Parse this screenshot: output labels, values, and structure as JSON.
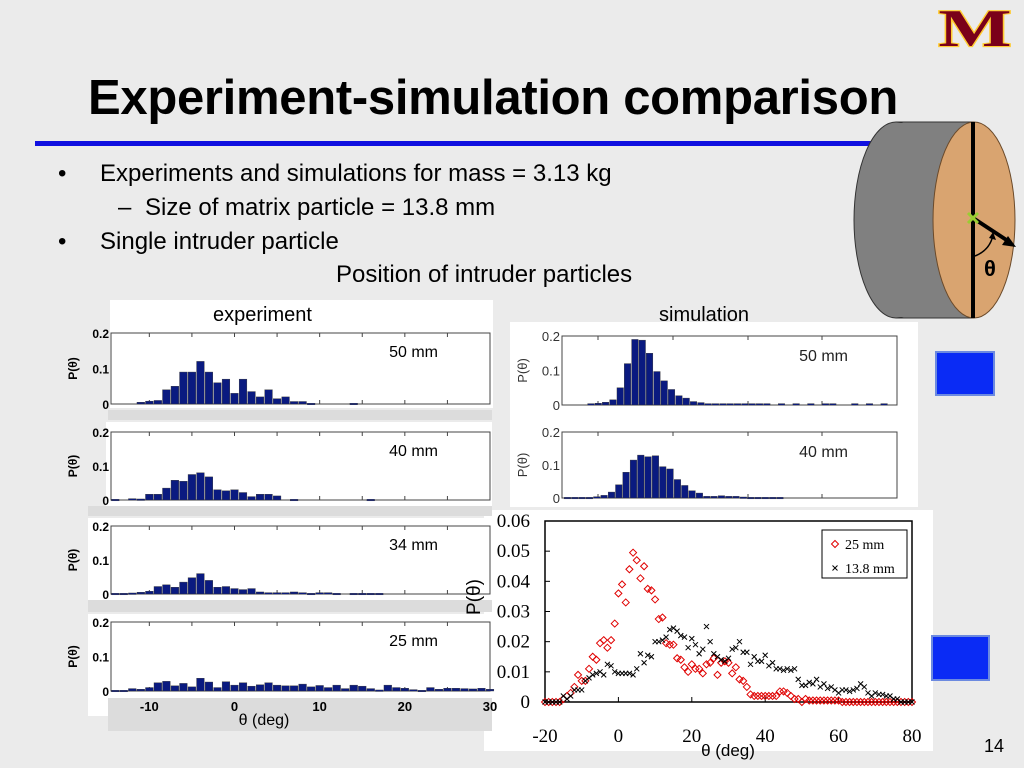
{
  "title": "Experiment-simulation comparison",
  "bullets": [
    {
      "marker": "•",
      "text": "Experiments and simulations for mass = 3.13 kg"
    },
    {
      "marker": "–",
      "text": "Size of matrix particle = 13.8 mm"
    },
    {
      "marker": "•",
      "text": "Single intruder particle"
    }
  ],
  "subheading": "Position of intruder particles",
  "experiment_label": "experiment",
  "simulation_label": "simulation",
  "diagram": {
    "angle_label": "θ"
  },
  "logo": {
    "text": "M",
    "colors": {
      "maroon": "#7a0019",
      "gold": "#ffcc33"
    }
  },
  "page_number": "14",
  "colors": {
    "bar": "#0a1a80",
    "accent_rule": "#1010e0",
    "red_series": "#e00000",
    "black_series": "#000000",
    "blue_square": "#0a2bf5"
  },
  "chart_data": [
    {
      "type": "bar",
      "group": "experiment",
      "label": "50 mm",
      "ylabel": "P(θ)",
      "yticks": [
        "0.2",
        "0.1",
        "0"
      ],
      "ylim": [
        0,
        0.2
      ],
      "xlim": [
        -14.5,
        30
      ],
      "x_start": -14,
      "bin_width": 1,
      "values": [
        0,
        0,
        0,
        0.005,
        0.008,
        0.01,
        0.04,
        0.05,
        0.09,
        0.09,
        0.12,
        0.09,
        0.06,
        0.07,
        0.03,
        0.07,
        0.035,
        0.02,
        0.04,
        0.015,
        0.02,
        0.007,
        0.007,
        0.002,
        0,
        0,
        0,
        0,
        0.002
      ]
    },
    {
      "type": "bar",
      "group": "experiment",
      "label": "40 mm",
      "ylabel": "P(θ)",
      "yticks": [
        "0.2",
        "0.1",
        "0"
      ],
      "ylim": [
        0,
        0.2
      ],
      "xlim": [
        -14.5,
        30
      ],
      "x_start": -14,
      "bin_width": 1,
      "values": [
        0.002,
        0,
        0.004,
        0.003,
        0.017,
        0.017,
        0.035,
        0.058,
        0.055,
        0.075,
        0.08,
        0.068,
        0.03,
        0.027,
        0.03,
        0.022,
        0.01,
        0.017,
        0.017,
        0.012,
        0,
        0.002,
        0,
        0,
        0,
        0,
        0,
        0,
        0,
        0,
        0.002
      ]
    },
    {
      "type": "bar",
      "group": "experiment",
      "label": "34 mm",
      "ylabel": "P(θ)",
      "yticks": [
        "0.2",
        "0.1",
        "0"
      ],
      "ylim": [
        0,
        0.2
      ],
      "xlim": [
        -14.5,
        30
      ],
      "x_start": -14,
      "bin_width": 1,
      "values": [
        0.002,
        0.002,
        0.003,
        0.005,
        0.008,
        0.022,
        0.027,
        0.02,
        0.035,
        0.048,
        0.06,
        0.04,
        0.02,
        0.022,
        0.016,
        0.013,
        0.016,
        0.006,
        0.004,
        0.004,
        0.004,
        0.006,
        0.004,
        0.002,
        0.004,
        0.004,
        0.002,
        0,
        0.002,
        0.002,
        0.002,
        0.002
      ]
    },
    {
      "type": "bar",
      "group": "experiment",
      "label": "25 mm",
      "ylabel": "P(θ)",
      "yticks": [
        "0.2",
        "0.1",
        "0"
      ],
      "ylim": [
        0,
        0.2
      ],
      "xlim": [
        -14.5,
        30
      ],
      "xticks": [
        "-10",
        "0",
        "10",
        "20",
        "30"
      ],
      "xtick_values": [
        -10,
        0,
        10,
        20,
        30
      ],
      "xlabel": "θ (deg)",
      "x_start": -14,
      "bin_width": 1,
      "values": [
        0.002,
        0.002,
        0.007,
        0.005,
        0.01,
        0.024,
        0.028,
        0.015,
        0.022,
        0.012,
        0.037,
        0.026,
        0.01,
        0.027,
        0.017,
        0.024,
        0.014,
        0.018,
        0.024,
        0.017,
        0.015,
        0.015,
        0.02,
        0.012,
        0.016,
        0.01,
        0.017,
        0.007,
        0.017,
        0.014,
        0.007,
        0.003,
        0.017,
        0.01,
        0.008,
        0.004,
        0.002,
        0.01,
        0.005,
        0.008,
        0.008,
        0.007,
        0.006,
        0.008,
        0.005
      ]
    },
    {
      "type": "bar",
      "group": "simulation",
      "label": "50 mm",
      "ylabel": "P(θ)",
      "yticks": [
        "0.2",
        "0.1",
        "0"
      ],
      "ylim": [
        0,
        0.2
      ],
      "values": [
        0.004,
        0.005,
        0.008,
        0.015,
        0.05,
        0.12,
        0.19,
        0.188,
        0.15,
        0.097,
        0.07,
        0.045,
        0.027,
        0.02,
        0.01,
        0.007,
        0.004,
        0.004,
        0.004,
        0.004,
        0.004,
        0.004,
        0.004,
        0.004,
        0.004,
        0,
        0.004,
        0,
        0.004,
        0,
        0.004,
        0,
        0.004,
        0.004,
        0,
        0,
        0.004,
        0,
        0.004,
        0,
        0.004
      ]
    },
    {
      "type": "bar",
      "group": "simulation",
      "label": "40 mm",
      "ylabel": "P(θ)",
      "yticks": [
        "0.2",
        "0.1",
        "0"
      ],
      "ylim": [
        0,
        0.2
      ],
      "values": [
        0.002,
        0.002,
        0.002,
        0.002,
        0.004,
        0.008,
        0.018,
        0.04,
        0.078,
        0.115,
        0.13,
        0.125,
        0.128,
        0.095,
        0.088,
        0.056,
        0.038,
        0.022,
        0.015,
        0.005,
        0.005,
        0.007,
        0.005,
        0.005,
        0.003,
        0.002,
        0.002,
        0.002,
        0.002,
        0.002
      ]
    },
    {
      "type": "scatter",
      "xlabel": "θ (deg)",
      "ylabel": "P(θ)",
      "xlim": [
        -20,
        80
      ],
      "ylim": [
        0,
        0.06
      ],
      "xticks": [
        "-20",
        "0",
        "20",
        "40",
        "60",
        "80"
      ],
      "yticks": [
        "0.06",
        "0.05",
        "0.04",
        "0.03",
        "0.02",
        "0.01",
        "0"
      ],
      "legend": "top-right",
      "x_start": -20,
      "x_step": 1,
      "series": [
        {
          "name": "25 mm",
          "marker": "diamond",
          "color": "#e00000",
          "values": [
            0,
            0,
            0,
            0,
            0,
            0.001,
            0.002,
            0.003,
            0.005,
            0.009,
            0.007,
            0.007,
            0.011,
            0.015,
            0.014,
            0.0195,
            0.0205,
            0.018,
            0.0205,
            0.026,
            0.036,
            0.039,
            0.033,
            0.044,
            0.0495,
            0.047,
            0.041,
            0.045,
            0.0375,
            0.037,
            0.034,
            0.0275,
            0.028,
            0.0195,
            0.019,
            0.019,
            0.0145,
            0.014,
            0.0115,
            0.01,
            0.0125,
            0.011,
            0.011,
            0.0095,
            0.0125,
            0.013,
            0.0145,
            0.009,
            0.013,
            0.0135,
            0.013,
            0.0095,
            0.0115,
            0.0075,
            0.007,
            0.005,
            0.0025,
            0.002,
            0.002,
            0.002,
            0.002,
            0.002,
            0.002,
            0.002,
            0.0035,
            0.0035,
            0.003,
            0.002,
            0.001,
            0.001,
            0,
            0.001,
            0.0005,
            0.0005,
            0.0005,
            0.0005,
            0.0005,
            0.0005,
            0.0005,
            0.0005,
            0.0005,
            0,
            0,
            0,
            0,
            0,
            0,
            0,
            0,
            0,
            0,
            0,
            0,
            0,
            0,
            0,
            0,
            0,
            0,
            0,
            0
          ]
        },
        {
          "name": "13.8 mm",
          "marker": "x",
          "color": "#000000",
          "values": [
            0,
            0,
            0,
            0,
            0,
            0.002,
            0.001,
            0.002,
            0.004,
            0.004,
            0.004,
            0.007,
            0.008,
            0.009,
            0.0095,
            0.01,
            0.009,
            0.0125,
            0.012,
            0.01,
            0.0095,
            0.0095,
            0.0095,
            0.0095,
            0.009,
            0.011,
            0.016,
            0.013,
            0.0155,
            0.015,
            0.02,
            0.02,
            0.0205,
            0.0215,
            0.024,
            0.0245,
            0.0235,
            0.022,
            0.0215,
            0.018,
            0.021,
            0.019,
            0.016,
            0.0175,
            0.025,
            0.02,
            0.016,
            0.015,
            0.014,
            0.0135,
            0.0145,
            0.0175,
            0.018,
            0.02,
            0.0165,
            0.0165,
            0.0125,
            0.015,
            0.0135,
            0.0135,
            0.0155,
            0.012,
            0.013,
            0.011,
            0.011,
            0.0105,
            0.011,
            0.0105,
            0.011,
            0.0075,
            0.0055,
            0.0055,
            0.0065,
            0.006,
            0.0075,
            0.005,
            0.006,
            0.0045,
            0.005,
            0.004,
            0.003,
            0.004,
            0.004,
            0.0035,
            0.004,
            0.0045,
            0.006,
            0.005,
            0.003,
            0.002,
            0.003,
            0.0025,
            0.0025,
            0.002,
            0.002,
            0.001,
            0.001,
            0,
            0,
            0,
            0
          ]
        }
      ]
    }
  ]
}
